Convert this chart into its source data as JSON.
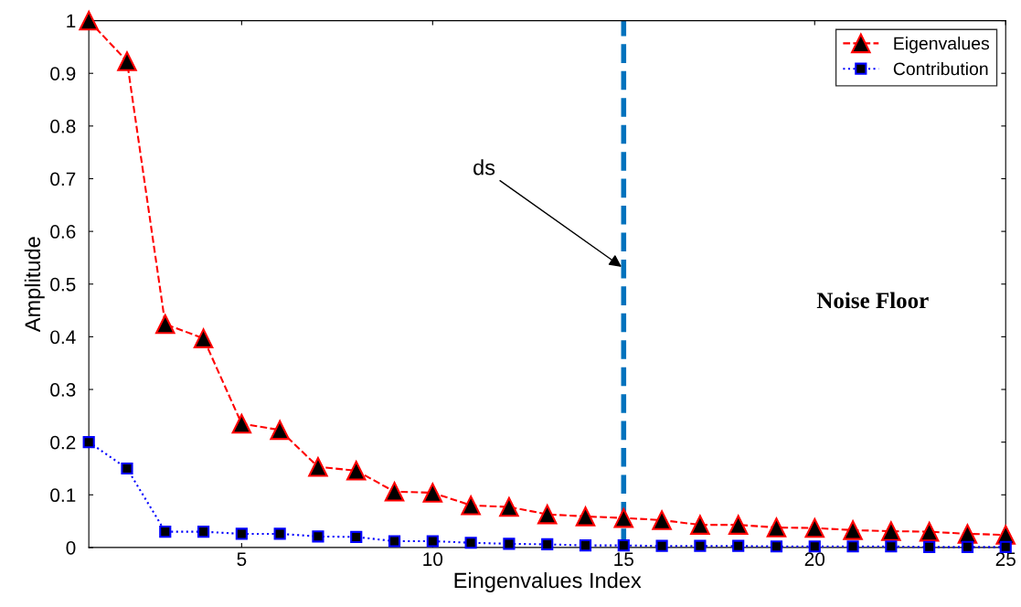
{
  "chart_data": {
    "type": "line",
    "xlabel": "Eingenvalues Index",
    "ylabel": "Amplitude",
    "x": [
      1,
      2,
      3,
      4,
      5,
      6,
      7,
      8,
      9,
      10,
      11,
      12,
      13,
      14,
      15,
      16,
      17,
      18,
      19,
      20,
      21,
      22,
      23,
      24,
      25
    ],
    "series": [
      {
        "name": "Eigenvalues",
        "color": "#ff0000",
        "marker": "triangle",
        "line_style": "dashed",
        "values": [
          1.0,
          0.923,
          0.424,
          0.397,
          0.235,
          0.223,
          0.153,
          0.146,
          0.106,
          0.104,
          0.08,
          0.077,
          0.063,
          0.059,
          0.056,
          0.052,
          0.043,
          0.043,
          0.038,
          0.037,
          0.033,
          0.031,
          0.03,
          0.026,
          0.024
        ]
      },
      {
        "name": "Contribution",
        "color": "#0000ff",
        "marker": "square",
        "line_style": "dotted",
        "values": [
          0.2,
          0.15,
          0.03,
          0.03,
          0.026,
          0.026,
          0.021,
          0.02,
          0.012,
          0.012,
          0.009,
          0.007,
          0.006,
          0.004,
          0.004,
          0.003,
          0.003,
          0.003,
          0.002,
          0.002,
          0.002,
          0.002,
          0.001,
          0.001,
          0.001
        ]
      }
    ],
    "xlim": [
      1,
      25
    ],
    "ylim": [
      0,
      1
    ],
    "xticks": [
      5,
      10,
      15,
      20,
      25
    ],
    "yticks": [
      0,
      0.1,
      0.2,
      0.3,
      0.4,
      0.5,
      0.6,
      0.7,
      0.8,
      0.9,
      1
    ],
    "ref_lines": [
      {
        "axis": "x",
        "value": 15,
        "color": "#0072bd",
        "line_style": "dashed"
      }
    ],
    "annotations": [
      {
        "text": "ds",
        "x": 15,
        "y": 0.53
      },
      "Noise Floor"
    ],
    "legend": "top right",
    "grid": false
  }
}
